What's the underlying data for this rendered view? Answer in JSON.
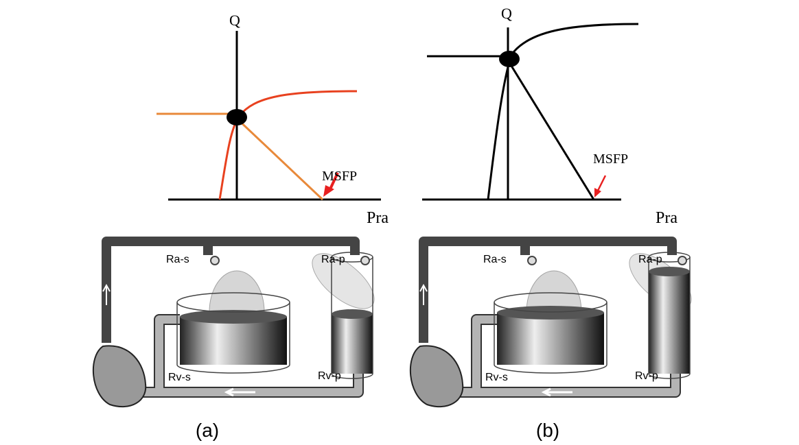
{
  "panels": [
    {
      "caption": "(a)",
      "graph": {
        "y_axis": "Q",
        "x_axis": "Pra",
        "annotation": "MSFP"
      },
      "circuit": {
        "labels": [
          "Ra-s",
          "Ra-p",
          "Rv-s",
          "Rv-p"
        ]
      }
    },
    {
      "caption": "(b)",
      "graph": {
        "y_axis": "Q",
        "x_axis": "Pra",
        "annotation": "MSFP"
      },
      "circuit": {
        "labels": [
          "Ra-s",
          "Ra-p",
          "Rv-s",
          "Rv-p"
        ]
      }
    }
  ]
}
